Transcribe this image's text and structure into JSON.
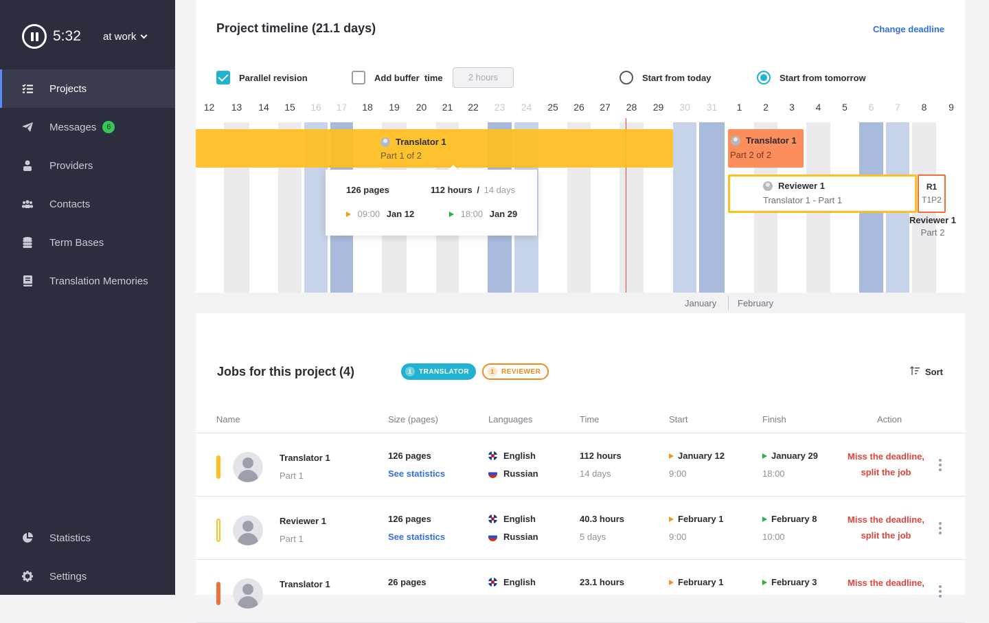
{
  "sidebar": {
    "timer": "5:32",
    "status": "at work",
    "items": [
      {
        "label": "Projects",
        "icon": "list-check-icon"
      },
      {
        "label": "Messages",
        "icon": "paper-plane-icon",
        "badge": "6"
      },
      {
        "label": "Providers",
        "icon": "person-icon"
      },
      {
        "label": "Contacts",
        "icon": "people-icon"
      },
      {
        "label": "Term Bases",
        "icon": "database-icon"
      },
      {
        "label": "Translation Memories",
        "icon": "book-icon"
      }
    ],
    "bottom": [
      {
        "label": "Statistics",
        "icon": "pie-chart-icon"
      },
      {
        "label": "Settings",
        "icon": "gear-icon"
      }
    ]
  },
  "timeline": {
    "title": "Project timeline (21.1 days)",
    "change_deadline": "Change deadline",
    "options": {
      "parallel_revision": "Parallel revision",
      "add_buffer": "Add buffer  time",
      "buffer_placeholder": "2 hours",
      "start_today": "Start from today",
      "start_tomorrow": "Start from tomorrow"
    },
    "days": [
      "12",
      "13",
      "14",
      "15",
      "16",
      "17",
      "18",
      "19",
      "20",
      "21",
      "22",
      "23",
      "24",
      "25",
      "26",
      "27",
      "28",
      "29",
      "30",
      "31",
      "1",
      "2",
      "3",
      "4",
      "5",
      "6",
      "7",
      "8",
      "9"
    ],
    "months": {
      "jan": "January",
      "feb": "February"
    },
    "bars": {
      "t1_name": "Translator 1",
      "t1_part": "Part 1 of 2",
      "t2_name": "Translator 1",
      "t2_part": "Part 2 of 2",
      "r1_name": "Reviewer 1",
      "r1_sub": "Translator 1 - Part 1",
      "r1b_code": "R1",
      "r1b_sub": "T1P2",
      "r1b_below_name": "Reviewer 1",
      "r1b_below_part": "Part 2"
    },
    "tooltip": {
      "pages": "126 pages",
      "hours": "112 hours",
      "slash": "/",
      "days": "14 days",
      "start_time": "09:00",
      "start_date": "Jan 12",
      "end_time": "18:00",
      "end_date": "Jan 29"
    }
  },
  "jobs": {
    "title": "Jobs for this project (4)",
    "pill_translator": {
      "count": "1",
      "label": "TRANSLATOR"
    },
    "pill_reviewer": {
      "count": "1",
      "label": "REVIEWER"
    },
    "sort": "Sort",
    "headers": {
      "name": "Name",
      "size": "Size (pages)",
      "languages": "Languages",
      "time": "Time",
      "start": "Start",
      "finish": "Finish",
      "action": "Action"
    },
    "rows": [
      {
        "name": "Translator 1",
        "part": "Part 1",
        "pages": "126 pages",
        "stats": "See statistics",
        "lang1": "English",
        "lang2": "Russian",
        "hours": "112 hours",
        "days": "14 days",
        "start_date": "January 12",
        "start_time": "9:00",
        "finish_date": "January 29",
        "finish_time": "18:00",
        "action1": "Miss the deadline,",
        "action2": "split the job"
      },
      {
        "name": "Reviewer 1",
        "part": "Part 1",
        "pages": "126 pages",
        "stats": "See statistics",
        "lang1": "English",
        "lang2": "Russian",
        "hours": "40.3 hours",
        "days": "5 days",
        "start_date": "February 1",
        "start_time": "9:00",
        "finish_date": "February 8",
        "finish_time": "10:00",
        "action1": "Miss the deadline,",
        "action2": "split the job"
      },
      {
        "name": "Translator 1",
        "part": "",
        "pages": "26 pages",
        "stats": "",
        "lang1": "English",
        "lang2": "",
        "hours": "23.1 hours",
        "days": "",
        "start_date": "February 1",
        "start_time": "",
        "finish_date": "February 3",
        "finish_time": "",
        "action1": "Miss the deadline,",
        "action2": ""
      }
    ]
  },
  "colors": {
    "accent": "#1fb2d1",
    "link": "#2f6fe4",
    "danger": "#e2443c",
    "translator": "#ffbf1f",
    "translator_part2": "#fb8e5c",
    "sidebar": "#2c2e3e"
  }
}
